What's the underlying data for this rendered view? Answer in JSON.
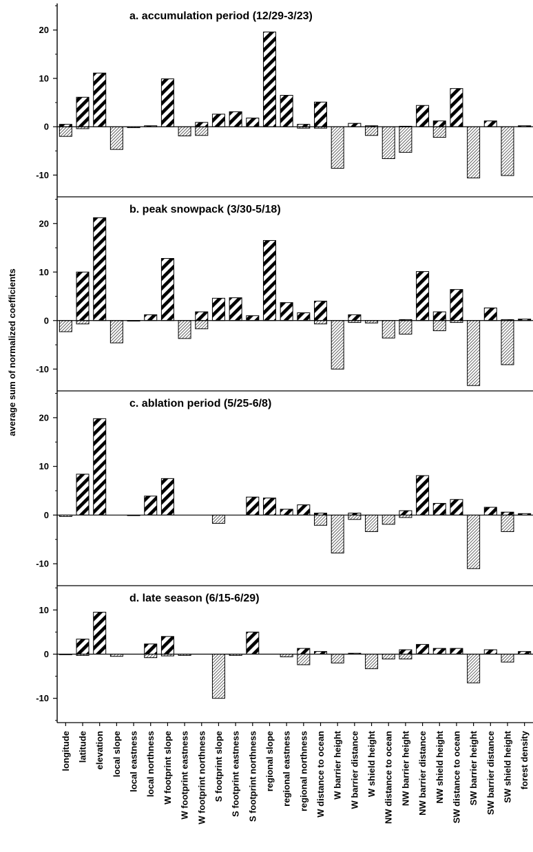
{
  "chart_data": {
    "type": "bar",
    "ylabel": "average sum of normalized coefficients",
    "xlabel": "",
    "categories": [
      "longitude",
      "latitude",
      "elevation",
      "local slope",
      "local eastness",
      "local northness",
      "W footprint slope",
      "W footprint eastness",
      "W footprint northness",
      "S footprint slope",
      "S footprint eastness",
      "S footprint northness",
      "regional slope",
      "regional eastness",
      "regional northness",
      "W distance to ocean",
      "W barrier height",
      "W barrier distance",
      "W shield height",
      "NW distance to ocean",
      "NW barrier height",
      "NW barrier distance",
      "NW shield height",
      "SW distance to ocean",
      "SW barrier height",
      "SW barrier distance",
      "SW shield height",
      "forest density"
    ],
    "series_styles": {
      "positive": {
        "fill": "dense-dark-diagonal-hatch",
        "stroke": "#000000"
      },
      "negative": {
        "fill": "light-fine-diagonal-hatch",
        "stroke": "#000000"
      }
    },
    "panels": [
      {
        "title": "a.  accumulation period (12/29-3/23)",
        "ylim": [
          -14.5,
          25.5
        ],
        "yticks": [
          -10,
          0,
          10,
          20
        ],
        "positive": [
          0.5,
          6.1,
          11.1,
          0,
          0,
          0.2,
          9.9,
          0,
          0.9,
          2.6,
          3.1,
          1.8,
          19.6,
          6.5,
          0.5,
          5.1,
          0,
          0.7,
          0.2,
          0,
          0.1,
          4.4,
          1.2,
          7.9,
          0,
          1.2,
          0,
          0.2
        ],
        "negative": [
          -2.0,
          -0.4,
          0,
          -4.7,
          -0.2,
          0,
          0,
          -1.9,
          -1.8,
          0,
          0,
          0,
          0,
          0,
          -0.3,
          -0.3,
          -8.6,
          0,
          -1.8,
          -6.6,
          -5.3,
          0,
          -2.2,
          0,
          -10.6,
          0,
          -10.1,
          0
        ]
      },
      {
        "title": "b.  peak snowpack (3/30-5/18)",
        "ylim": [
          -14.5,
          25.5
        ],
        "yticks": [
          -10,
          0,
          10,
          20
        ],
        "positive": [
          0,
          10.0,
          21.2,
          0,
          0,
          1.2,
          12.8,
          0,
          1.8,
          4.6,
          4.7,
          1.0,
          16.5,
          3.7,
          1.6,
          4.0,
          0,
          1.2,
          0,
          0,
          0.2,
          10.1,
          1.8,
          6.4,
          0,
          2.6,
          0.2,
          0.3
        ],
        "negative": [
          -2.3,
          -0.7,
          0,
          -4.6,
          -0.1,
          0,
          0,
          -3.7,
          -1.7,
          0,
          0,
          0,
          0,
          0,
          0,
          -0.7,
          -10.0,
          -0.4,
          -0.5,
          -3.6,
          -2.8,
          0,
          -2.1,
          -0.4,
          -13.4,
          0,
          -9.1,
          0
        ]
      },
      {
        "title": "c.  ablation period (5/25-6/8)",
        "ylim": [
          -14.5,
          25.5
        ],
        "yticks": [
          -10,
          0,
          10,
          20
        ],
        "positive": [
          0,
          8.4,
          19.8,
          0,
          0,
          3.9,
          7.5,
          0,
          0,
          0,
          0,
          3.7,
          3.5,
          1.2,
          2.1,
          0.4,
          0,
          0.4,
          0,
          0,
          0.9,
          8.1,
          2.4,
          3.2,
          0,
          1.6,
          0.6,
          0.3
        ],
        "negative": [
          -0.3,
          0,
          0,
          0,
          -0.1,
          0,
          0,
          0,
          0,
          -1.7,
          0,
          0,
          0,
          0,
          0,
          -2.1,
          -7.8,
          -0.9,
          -3.4,
          -1.9,
          -0.5,
          0,
          0,
          0,
          -11.0,
          0,
          -3.4,
          0
        ]
      },
      {
        "title": "d.  late season (6/15-6/29)",
        "ylim": [
          -15.5,
          15.5
        ],
        "yticks": [
          -10,
          0,
          10
        ],
        "positive": [
          0,
          3.4,
          9.5,
          0,
          0,
          2.3,
          4.0,
          0,
          0,
          0,
          0,
          5.0,
          0,
          0,
          1.3,
          0.6,
          0,
          0.2,
          0,
          0,
          1.0,
          2.2,
          1.3,
          1.3,
          0,
          1.0,
          0,
          0.6
        ],
        "negative": [
          -0.1,
          -0.3,
          0,
          -0.5,
          0,
          -0.8,
          -0.4,
          -0.3,
          0,
          -10.0,
          -0.3,
          0,
          0,
          -0.6,
          -2.4,
          0,
          -2.0,
          0,
          -3.3,
          -1.1,
          -1.1,
          0,
          0,
          0,
          -6.5,
          0,
          -1.8,
          0
        ]
      }
    ]
  }
}
